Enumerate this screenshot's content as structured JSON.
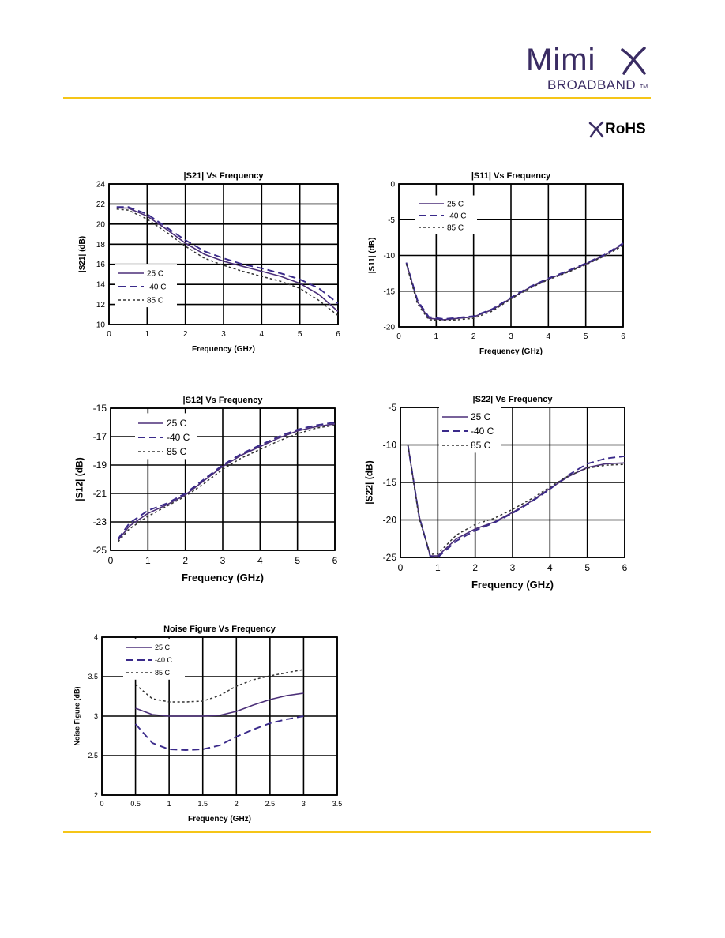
{
  "header": {
    "logo_main": "Mimi",
    "logo_sub": "BROADBAND",
    "logo_tm": "TM",
    "rohs_label": "RoHS",
    "accent_color": "#f5c518",
    "brand_color": "#3a2c63"
  },
  "chart_data": [
    {
      "id": "s21",
      "type": "line",
      "title": "|S21| Vs Frequency",
      "xlabel": "Frequency (GHz)",
      "ylabel": "|S21| (dB)",
      "xlim": [
        0,
        6
      ],
      "ylim": [
        10,
        24
      ],
      "xticks": [
        0,
        1,
        2,
        3,
        4,
        5,
        6
      ],
      "yticks": [
        10,
        12,
        14,
        16,
        18,
        20,
        22,
        24
      ],
      "grid": true,
      "legend_position": "bottom-left",
      "series": [
        {
          "name": "25 C",
          "style": "solid",
          "x": [
            0.2,
            0.5,
            1,
            1.5,
            2,
            2.5,
            3,
            3.5,
            4,
            4.5,
            5,
            5.5,
            6
          ],
          "y": [
            21.6,
            21.6,
            20.8,
            19.5,
            18.1,
            17.0,
            16.3,
            15.8,
            15.3,
            14.8,
            14.1,
            13.0,
            11.3
          ]
        },
        {
          "name": "-40 C",
          "style": "dashed",
          "x": [
            0.2,
            0.5,
            1,
            1.5,
            2,
            2.5,
            3,
            3.5,
            4,
            4.5,
            5,
            5.5,
            6
          ],
          "y": [
            21.7,
            21.7,
            21.0,
            19.7,
            18.4,
            17.3,
            16.6,
            16.0,
            15.6,
            15.1,
            14.5,
            13.6,
            12.1
          ]
        },
        {
          "name": "85 C",
          "style": "dotted",
          "x": [
            0.2,
            0.5,
            1,
            1.5,
            2,
            2.5,
            3,
            3.5,
            4,
            4.5,
            5,
            5.5,
            6
          ],
          "y": [
            21.5,
            21.4,
            20.5,
            19.2,
            17.8,
            16.6,
            15.9,
            15.3,
            14.8,
            14.3,
            13.6,
            12.4,
            10.9
          ]
        }
      ]
    },
    {
      "id": "s11",
      "type": "line",
      "title": "|S11| Vs Frequency",
      "xlabel": "Frequency (GHz)",
      "ylabel": "|S11| (dB)",
      "xlim": [
        0,
        6
      ],
      "ylim": [
        -20,
        0
      ],
      "xticks": [
        0,
        1,
        2,
        3,
        4,
        5,
        6
      ],
      "yticks": [
        -20,
        -15,
        -10,
        -5,
        0
      ],
      "grid": true,
      "legend_position": "top-left",
      "series": [
        {
          "name": "25 C",
          "style": "solid",
          "x": [
            0.2,
            0.5,
            0.8,
            1.2,
            1.6,
            2,
            2.5,
            3,
            3.5,
            4,
            4.5,
            5,
            5.5,
            6
          ],
          "y": [
            -11,
            -16.5,
            -18.8,
            -19.0,
            -18.8,
            -18.6,
            -17.6,
            -16.0,
            -14.5,
            -13.3,
            -12.3,
            -11.2,
            -10.0,
            -8.4
          ]
        },
        {
          "name": "-40 C",
          "style": "dashed",
          "x": [
            0.2,
            0.5,
            0.8,
            1.2,
            1.6,
            2,
            2.5,
            3,
            3.5,
            4,
            4.5,
            5,
            5.5,
            6
          ],
          "y": [
            -11,
            -16.3,
            -18.6,
            -18.9,
            -18.7,
            -18.5,
            -17.5,
            -15.9,
            -14.4,
            -13.2,
            -12.2,
            -11.1,
            -9.9,
            -8.3
          ]
        },
        {
          "name": "85 C",
          "style": "dotted",
          "x": [
            0.2,
            0.5,
            0.8,
            1.2,
            1.6,
            2,
            2.5,
            3,
            3.5,
            4,
            4.5,
            5,
            5.5,
            6
          ],
          "y": [
            -11.2,
            -16.8,
            -19.0,
            -19.1,
            -19.0,
            -18.8,
            -17.8,
            -16.1,
            -14.6,
            -13.4,
            -12.4,
            -11.3,
            -10.1,
            -8.6
          ]
        }
      ]
    },
    {
      "id": "s12",
      "type": "line",
      "title": "|S12| Vs Frequency",
      "xlabel": "Frequency (GHz)",
      "ylabel": "|S12| (dB)",
      "xlim": [
        0,
        6
      ],
      "ylim": [
        -25,
        -15
      ],
      "xticks": [
        0,
        1,
        2,
        3,
        4,
        5,
        6
      ],
      "yticks": [
        -25,
        -23,
        -21,
        -19,
        -17,
        -15
      ],
      "grid": true,
      "legend_position": "top-left",
      "series": [
        {
          "name": "25 C",
          "style": "solid",
          "x": [
            0.2,
            0.5,
            1,
            1.5,
            2,
            2.5,
            3,
            3.5,
            4,
            4.5,
            5,
            5.5,
            6
          ],
          "y": [
            -24.3,
            -23.3,
            -22.4,
            -21.8,
            -21.1,
            -20.1,
            -19.1,
            -18.3,
            -17.7,
            -17.1,
            -16.6,
            -16.3,
            -16.1
          ]
        },
        {
          "name": "-40 C",
          "style": "dashed",
          "x": [
            0.2,
            0.5,
            1,
            1.5,
            2,
            2.5,
            3,
            3.5,
            4,
            4.5,
            5,
            5.5,
            6
          ],
          "y": [
            -24.2,
            -23.1,
            -22.2,
            -21.7,
            -21.0,
            -20.0,
            -19.0,
            -18.2,
            -17.6,
            -17.0,
            -16.5,
            -16.2,
            -16.0
          ]
        },
        {
          "name": "85 C",
          "style": "dotted",
          "x": [
            0.2,
            0.5,
            1,
            1.5,
            2,
            2.5,
            3,
            3.5,
            4,
            4.5,
            5,
            5.5,
            6
          ],
          "y": [
            -24.4,
            -23.5,
            -22.6,
            -21.9,
            -21.2,
            -20.3,
            -19.3,
            -18.5,
            -17.9,
            -17.3,
            -16.8,
            -16.4,
            -16.2
          ]
        }
      ]
    },
    {
      "id": "s22",
      "type": "line",
      "title": "|S22| Vs Frequency",
      "xlabel": "Frequency (GHz)",
      "ylabel": "|S22| (dB)",
      "xlim": [
        0,
        6
      ],
      "ylim": [
        -25,
        -5
      ],
      "xticks": [
        0,
        1,
        2,
        3,
        4,
        5,
        6
      ],
      "yticks": [
        -25,
        -20,
        -15,
        -10,
        -5
      ],
      "grid": true,
      "legend_position": "top-left",
      "series": [
        {
          "name": "25 C",
          "style": "solid",
          "x": [
            0.2,
            0.5,
            0.8,
            1.0,
            1.5,
            2,
            2.5,
            3,
            3.5,
            4,
            4.5,
            5,
            5.5,
            6
          ],
          "y": [
            -10,
            -19.5,
            -24.8,
            -24.8,
            -22.5,
            -21.2,
            -20.3,
            -19.0,
            -17.5,
            -15.8,
            -14.2,
            -13.0,
            -12.5,
            -12.4
          ]
        },
        {
          "name": "-40 C",
          "style": "dashed",
          "x": [
            0.2,
            0.5,
            0.8,
            1.0,
            1.5,
            2,
            2.5,
            3,
            3.5,
            4,
            4.5,
            5,
            5.5,
            6
          ],
          "y": [
            -10,
            -19.5,
            -24.9,
            -25.0,
            -22.8,
            -21.4,
            -20.4,
            -19.1,
            -17.6,
            -15.9,
            -14.0,
            -12.5,
            -11.8,
            -11.5
          ]
        },
        {
          "name": "85 C",
          "style": "dotted",
          "x": [
            0.2,
            0.5,
            0.8,
            1.0,
            1.5,
            2,
            2.5,
            3,
            3.5,
            4,
            4.5,
            5,
            5.5,
            6
          ],
          "y": [
            -10,
            -19.8,
            -24.6,
            -24.5,
            -22.0,
            -20.6,
            -19.8,
            -18.6,
            -17.2,
            -15.6,
            -14.1,
            -13.1,
            -12.7,
            -12.6
          ]
        }
      ]
    },
    {
      "id": "nf",
      "type": "line",
      "title": "Noise Figure Vs Frequency",
      "xlabel": "Frequency (GHz)",
      "ylabel": "Noise Figure (dB)",
      "xlim": [
        0,
        3.5
      ],
      "ylim": [
        2,
        4
      ],
      "xticks": [
        0,
        0.5,
        1,
        1.5,
        2,
        2.5,
        3,
        3.5
      ],
      "yticks": [
        2,
        2.5,
        3,
        3.5,
        4
      ],
      "grid": true,
      "legend_position": "top-left",
      "series": [
        {
          "name": "25 C",
          "style": "solid",
          "x": [
            0.5,
            0.75,
            1,
            1.25,
            1.5,
            1.75,
            2,
            2.25,
            2.5,
            2.75,
            3
          ],
          "y": [
            3.1,
            3.02,
            3.0,
            3.0,
            3.0,
            3.01,
            3.06,
            3.14,
            3.21,
            3.26,
            3.29
          ]
        },
        {
          "name": "-40 C",
          "style": "dashed",
          "x": [
            0.5,
            0.75,
            1,
            1.25,
            1.5,
            1.75,
            2,
            2.25,
            2.5,
            2.75,
            3
          ],
          "y": [
            2.9,
            2.66,
            2.58,
            2.57,
            2.58,
            2.63,
            2.74,
            2.83,
            2.91,
            2.96,
            3.0
          ]
        },
        {
          "name": "85 C",
          "style": "dotted",
          "x": [
            0.5,
            0.75,
            1,
            1.25,
            1.5,
            1.75,
            2,
            2.25,
            2.5,
            2.75,
            3
          ],
          "y": [
            3.4,
            3.22,
            3.18,
            3.18,
            3.19,
            3.26,
            3.38,
            3.46,
            3.51,
            3.55,
            3.59
          ]
        }
      ]
    }
  ]
}
